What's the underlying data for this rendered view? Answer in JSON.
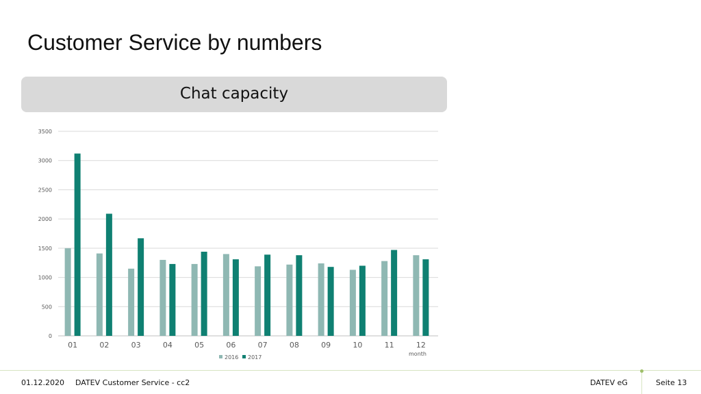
{
  "slide": {
    "title": "Customer Service by numbers"
  },
  "footer": {
    "date": "01.12.2020",
    "center_text": "DATEV Customer Service - cc2",
    "company": "DATEV eG",
    "page": "Seite 13"
  },
  "colors": {
    "series_2016": "#8fb8b3",
    "series_2017": "#0f8072",
    "grid": "#d9d9d9",
    "banner": "#d9d9d9"
  },
  "chart_data": {
    "type": "bar",
    "title": "Chat capacity",
    "xlabel": "month",
    "ylabel": "",
    "ylim": [
      0,
      3500
    ],
    "yticks": [
      0,
      500,
      1000,
      1500,
      2000,
      2500,
      3000,
      3500
    ],
    "categories": [
      "01",
      "02",
      "03",
      "04",
      "05",
      "06",
      "07",
      "08",
      "09",
      "10",
      "11",
      "12"
    ],
    "series": [
      {
        "name": "2016",
        "values": [
          1500,
          1410,
          1150,
          1300,
          1230,
          1400,
          1190,
          1220,
          1240,
          1130,
          1280,
          1380
        ]
      },
      {
        "name": "2017",
        "values": [
          3120,
          2090,
          1670,
          1230,
          1440,
          1310,
          1390,
          1380,
          1180,
          1200,
          1470,
          1310
        ]
      }
    ],
    "legend_position": "bottom",
    "grid": true
  }
}
